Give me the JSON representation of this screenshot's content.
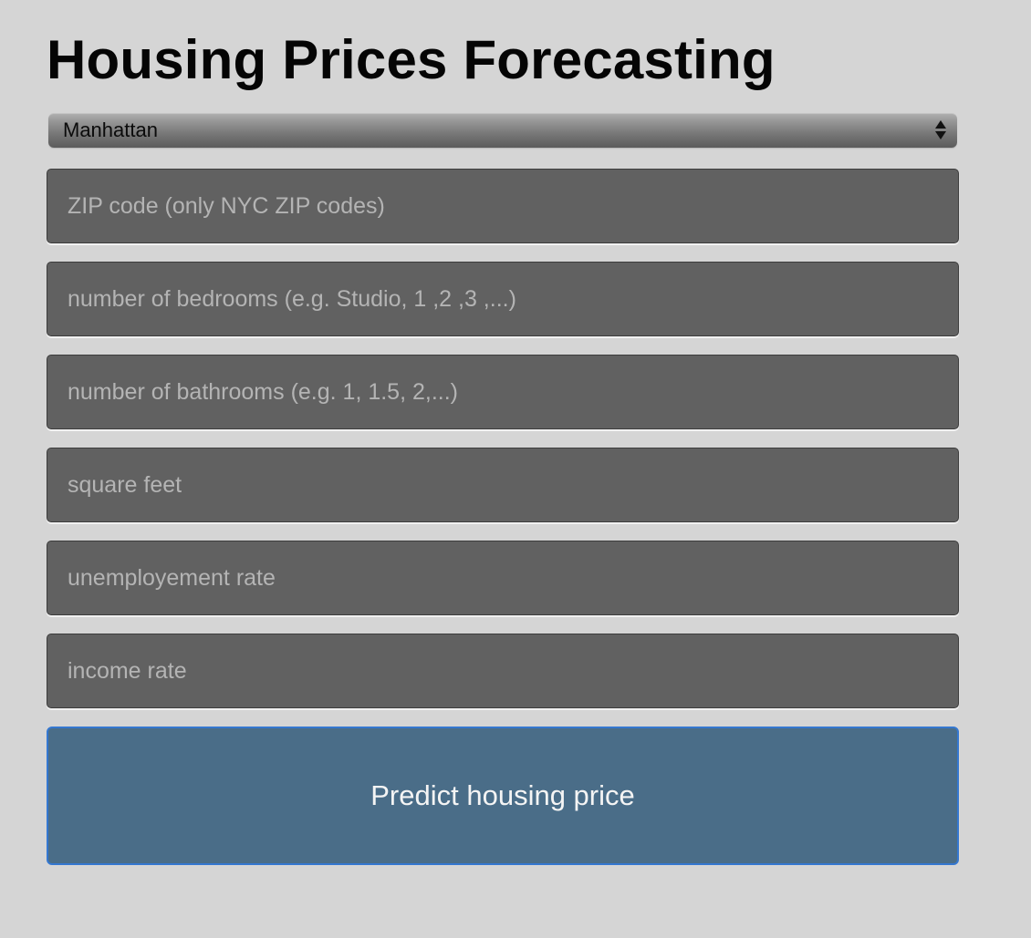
{
  "app": {
    "title": "Housing Prices Forecasting"
  },
  "borough_select": {
    "selected": "Manhattan"
  },
  "fields": {
    "zip": {
      "placeholder": "ZIP code (only NYC ZIP codes)",
      "value": ""
    },
    "bedrooms": {
      "placeholder": "number of bedrooms (e.g. Studio, 1 ,2 ,3 ,...)",
      "value": ""
    },
    "bathrooms": {
      "placeholder": "number of bathrooms (e.g. 1, 1.5, 2,...)",
      "value": ""
    },
    "square_feet": {
      "placeholder": "square feet",
      "value": ""
    },
    "unemployment_rate": {
      "placeholder": "unemployement rate",
      "value": ""
    },
    "income_rate": {
      "placeholder": "income rate",
      "value": ""
    }
  },
  "actions": {
    "predict_label": "Predict housing price"
  },
  "colors": {
    "background": "#d5d5d5",
    "field_background": "#616161",
    "button_background": "#4a6d88",
    "button_border": "#3477d0"
  },
  "icons": {
    "select_arrows": "select-arrows-icon"
  }
}
